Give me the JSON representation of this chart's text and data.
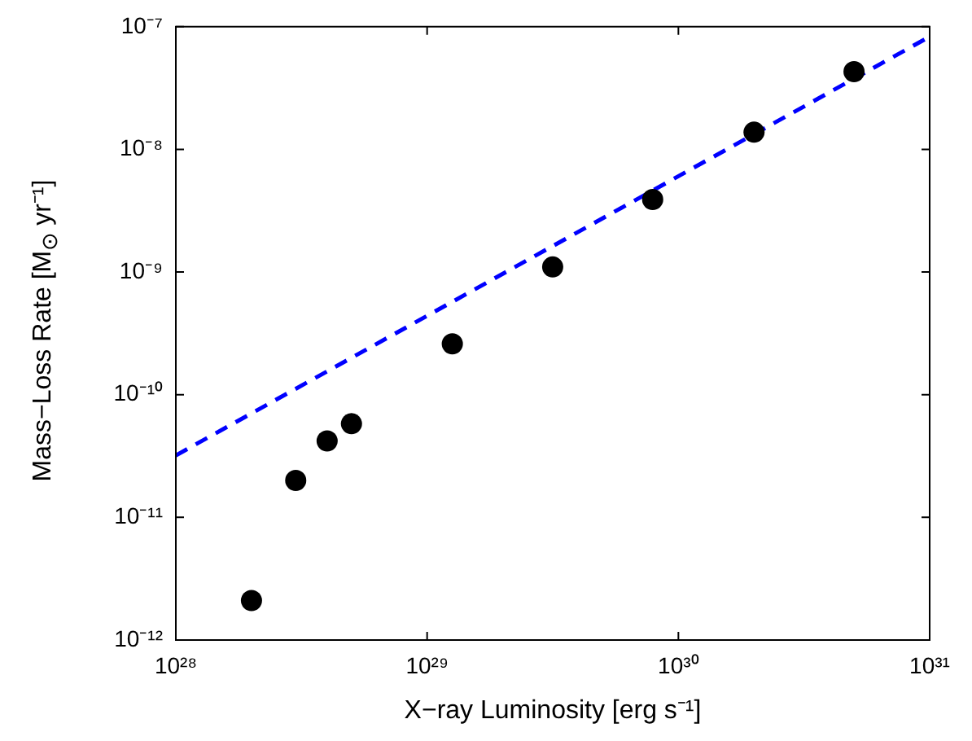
{
  "chart_data": {
    "type": "scatter",
    "xlabel": "X−ray Luminosity [erg s⁻¹]",
    "ylabel": "Mass−Loss Rate [M$_{⊙}$ yr⁻¹]",
    "log": "xy",
    "grid": false,
    "legend": false,
    "marker": "circle",
    "xlim": [
      1e+28,
      1e+31
    ],
    "xticks": [
      {
        "value": 1e+28,
        "label": "10²⁸"
      },
      {
        "value": 1e+29,
        "label": "10²⁹"
      },
      {
        "value": 1e+30,
        "label": "10³⁰"
      },
      {
        "value": 1e+31,
        "label": "10³¹"
      }
    ],
    "ylim": [
      1e-12,
      1e-07
    ],
    "yticks": [
      {
        "value": 1e-12,
        "label": "10⁻¹²"
      },
      {
        "value": 1e-11,
        "label": "10⁻¹¹"
      },
      {
        "value": 1e-10,
        "label": "10⁻¹⁰"
      },
      {
        "value": 1e-09,
        "label": "10⁻⁹"
      },
      {
        "value": 1e-08,
        "label": "10⁻⁸"
      },
      {
        "value": 1e-07,
        "label": "10⁻⁷"
      }
    ],
    "series": [
      {
        "color": "#000000",
        "x": [
          2e+28,
          3e+28,
          4e+28,
          5e+28,
          1.26e+29,
          3.16e+29,
          7.9e+29,
          2e+30,
          5e+30
        ],
        "values": [
          2.1e-12,
          2e-11,
          4.2e-11,
          5.8e-11,
          2.6e-10,
          1.1e-09,
          3.9e-09,
          1.38e-08,
          4.3e-08
        ]
      },
      {
        "type": "line",
        "color": "#0000ff",
        "marker": "none",
        "line_style": "dashed",
        "x": [
          1e+28,
          1e+31
        ],
        "values": [
          3.2e-11,
          8.3e-08
        ]
      }
    ]
  }
}
